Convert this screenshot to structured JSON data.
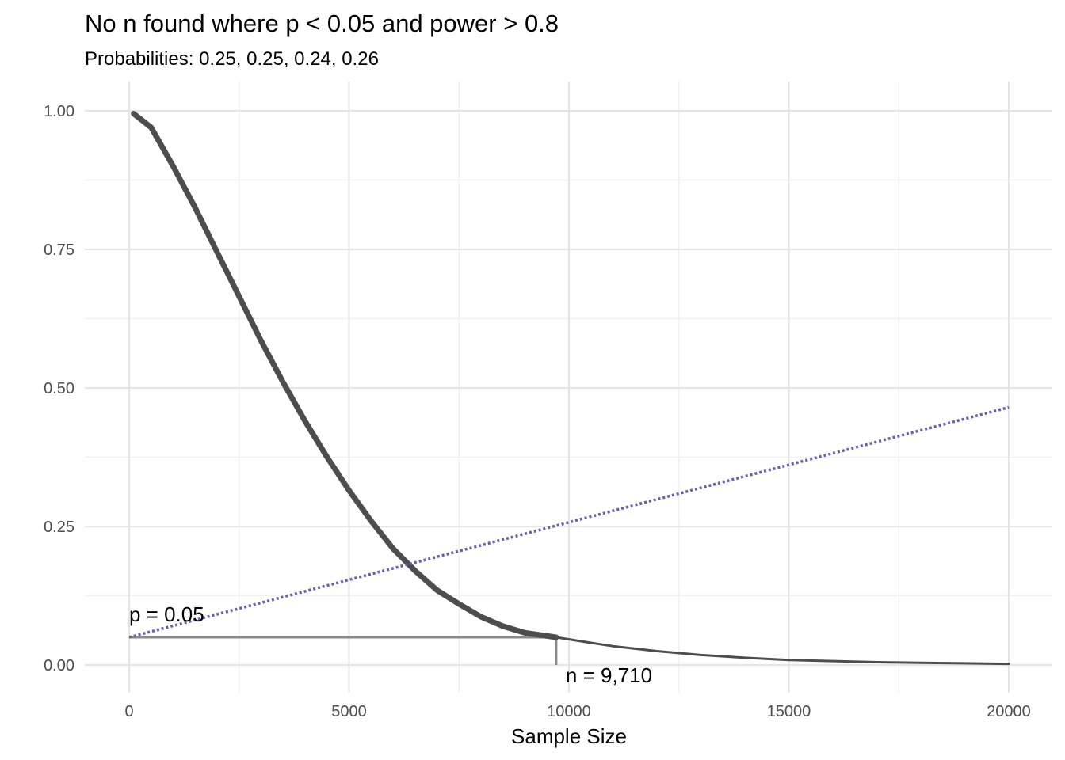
{
  "colors": {
    "p_value_curve": "#4d4d4d",
    "power_curve": "#6a5fa8",
    "threshold_lines": "#8a8a8a",
    "grid_major": "#e5e5e5",
    "grid_minor": "#f0f0f0"
  },
  "chart_data": {
    "type": "line",
    "title": "No n found where p < 0.05 and power > 0.8",
    "subtitle": "Probabilities: 0.25, 0.25, 0.24, 0.26",
    "xlabel": "Sample Size",
    "ylabel": "",
    "xlim": [
      0,
      20000
    ],
    "ylim": [
      0,
      1
    ],
    "x_ticks": [
      0,
      5000,
      10000,
      15000,
      20000
    ],
    "x_tick_labels": [
      "0",
      "5000",
      "10000",
      "15000",
      "20000"
    ],
    "y_ticks": [
      0,
      0.25,
      0.5,
      0.75,
      1
    ],
    "y_tick_labels": [
      "0.00",
      "0.25",
      "0.50",
      "0.75",
      "1.00"
    ],
    "grid": true,
    "legend": "none",
    "series": [
      {
        "style": "solid",
        "x": [
          100,
          500,
          1000,
          1500,
          2000,
          2500,
          3000,
          3500,
          4000,
          4500,
          5000,
          5500,
          6000,
          6500,
          7000,
          7500,
          8000,
          8500,
          9000,
          9710,
          10500,
          11000,
          12000,
          13000,
          14000,
          15000,
          16000,
          17000,
          18000,
          19000,
          20000
        ],
        "values": [
          0.995,
          0.97,
          0.9,
          0.825,
          0.745,
          0.665,
          0.585,
          0.51,
          0.44,
          0.375,
          0.315,
          0.26,
          0.21,
          0.17,
          0.135,
          0.11,
          0.087,
          0.07,
          0.058,
          0.05,
          0.04,
          0.034,
          0.025,
          0.018,
          0.013,
          0.009,
          0.007,
          0.005,
          0.004,
          0.003,
          0.002
        ]
      },
      {
        "style": "dotted",
        "x": [
          0,
          20000
        ],
        "values": [
          0.05,
          0.465
        ]
      }
    ],
    "annotations": [
      {
        "text": "p = 0.05",
        "x": 0,
        "y": 0.05
      },
      {
        "text": "n = 9,710",
        "x": 9710,
        "y": 0
      }
    ],
    "threshold": {
      "p": 0.05,
      "n": 9710
    }
  }
}
